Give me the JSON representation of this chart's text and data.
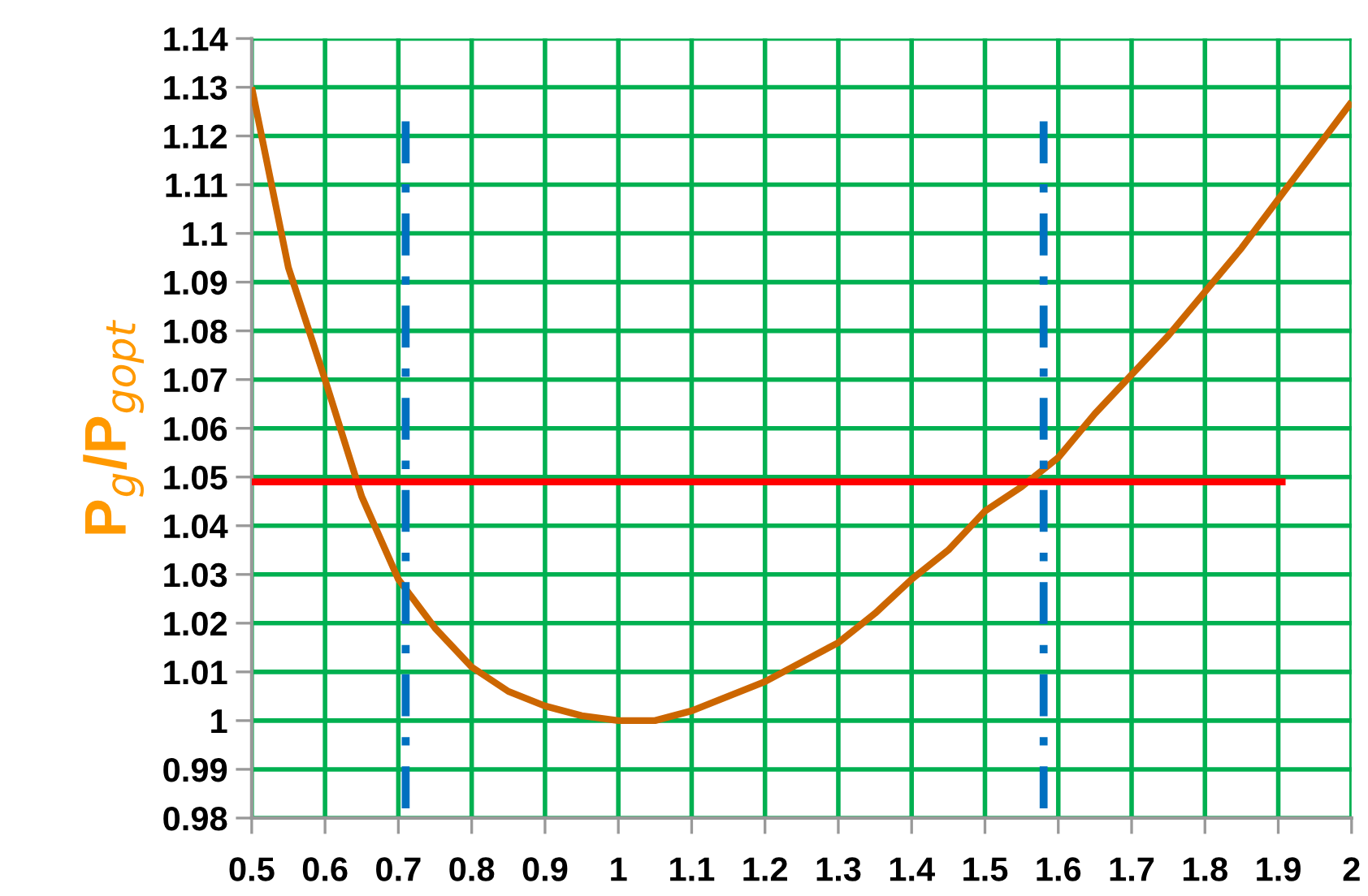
{
  "chart_data": {
    "type": "line",
    "ylabel": "P$_{g}$/P$_{gopt}$",
    "xlim": [
      0.5,
      2
    ],
    "xticks": [
      0.5,
      0.6,
      0.7,
      0.8,
      0.9,
      1,
      1.1,
      1.2,
      1.3,
      1.4,
      1.5,
      1.6,
      1.7,
      1.8,
      1.9,
      2
    ],
    "ylim": [
      0.98,
      1.14
    ],
    "yticks": [
      0.98,
      0.99,
      1,
      1.01,
      1.02,
      1.03,
      1.04,
      1.05,
      1.06,
      1.07,
      1.08,
      1.09,
      1.1,
      1.11,
      1.12,
      1.13,
      1.14
    ],
    "grid": true,
    "marker": "none",
    "series": [
      {
        "color": "#cc6600",
        "line_style": "solid",
        "x": [
          0.5,
          0.55,
          0.6,
          0.65,
          0.7,
          0.75,
          0.8,
          0.85,
          0.9,
          0.95,
          1.0,
          1.05,
          1.1,
          1.15,
          1.2,
          1.25,
          1.3,
          1.35,
          1.4,
          1.45,
          1.5,
          1.55,
          1.6,
          1.65,
          1.7,
          1.75,
          1.8,
          1.85,
          1.9,
          1.95,
          2.0
        ],
        "values": [
          1.13,
          1.093,
          1.07,
          1.046,
          1.029,
          1.019,
          1.011,
          1.006,
          1.003,
          1.001,
          1.0,
          1.0,
          1.002,
          1.005,
          1.008,
          1.012,
          1.016,
          1.022,
          1.029,
          1.035,
          1.043,
          1.048,
          1.054,
          1.063,
          1.071,
          1.079,
          1.088,
          1.097,
          1.107,
          1.117,
          1.127
        ]
      },
      {
        "color": "#ff0000",
        "line_style": "solid",
        "x": [
          0.5,
          1.91
        ],
        "values": [
          1.049,
          1.049
        ]
      },
      {
        "color": "#0070c0",
        "line_style": "dashdot",
        "x": [
          0.71,
          0.71
        ],
        "values": [
          1.123,
          0.982
        ]
      },
      {
        "color": "#0070c0",
        "line_style": "dashdot",
        "x": [
          1.58,
          1.58
        ],
        "values": [
          1.123,
          0.982
        ]
      }
    ]
  }
}
